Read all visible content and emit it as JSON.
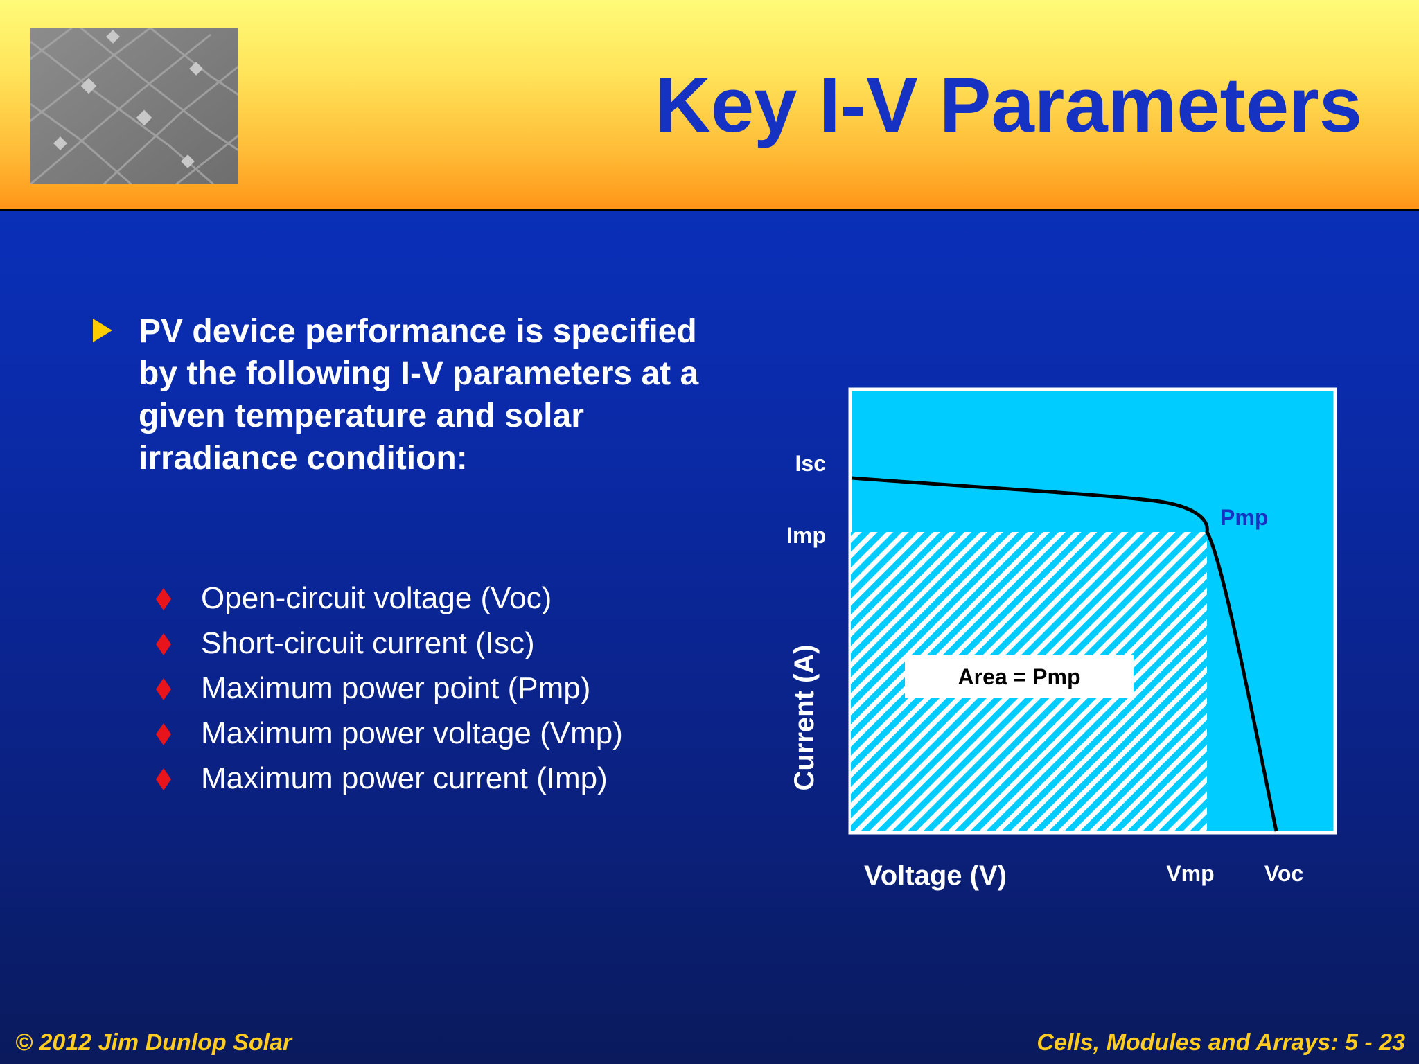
{
  "slide": {
    "title": "Key I-V Parameters",
    "main_bullet": "PV device performance is specified by the following I-V parameters at a given temperature and solar irradiance condition:",
    "sub_bullets": [
      "Open-circuit voltage (Voc)",
      "Short-circuit current (Isc)",
      "Maximum power point (Pmp)",
      "Maximum power voltage (Vmp)",
      "Maximum power current (Imp)"
    ]
  },
  "chart": {
    "xlabel": "Voltage (V)",
    "ylabel": "Current (A)",
    "isc_label": "Isc",
    "imp_label": "Imp",
    "pmp_label": "Pmp",
    "vmp_label": "Vmp",
    "voc_label": "Voc",
    "area_label": "Area = Pmp",
    "colors": {
      "plot_bg": "#00ccff",
      "curve": "#000000",
      "hatch": "#ffffff",
      "pmp_text": "#1632c2"
    }
  },
  "footer": {
    "left": "© 2012 Jim Dunlop Solar",
    "right": "Cells, Modules and Arrays: 5 - 23"
  },
  "colors": {
    "header_top": "#fffb78",
    "header_bottom": "#ff9518",
    "title": "#1632c2",
    "body_bg": "#0a2aa8",
    "footer_text": "#ffcc22",
    "bullet_triangle": "#ffcc00",
    "sub_bullet_diamond": "#e8141c"
  }
}
